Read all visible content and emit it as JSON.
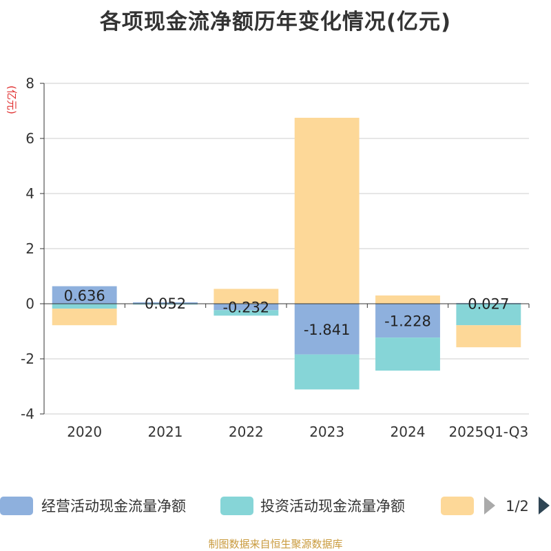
{
  "title": "各项现金流净额历年变化情况(亿元)",
  "source_note": "制图数据来自恒生聚源数据库",
  "legend": {
    "page_indicator": "1/2",
    "prev_icon": "triangle-left-icon",
    "next_icon": "triangle-right-icon"
  },
  "chart_data": {
    "type": "bar",
    "stacked": true,
    "title": "各项现金流净额历年变化情况(亿元)",
    "xlabel": "",
    "ylabel": "(亿元)",
    "ylim": [
      -4,
      8
    ],
    "yticks": [
      -4,
      -2,
      0,
      2,
      4,
      6,
      8
    ],
    "grid": true,
    "legend_position": "bottom",
    "categories": [
      "2020",
      "2021",
      "2022",
      "2023",
      "2024",
      "2025Q1-Q3"
    ],
    "series": [
      {
        "name": "经营活动现金流量净额",
        "color": "#8eb0dd",
        "values": [
          0.636,
          0.052,
          -0.232,
          -1.841,
          -1.228,
          0.027
        ],
        "labels": [
          "0.636",
          "0.052",
          "-0.232",
          "-1.841",
          "-1.228",
          "0.027"
        ]
      },
      {
        "name": "投资活动现金流量净额",
        "color": "#86d5d7",
        "values": [
          -0.18,
          -0.03,
          -0.2,
          -1.27,
          -1.2,
          -0.78
        ]
      },
      {
        "name": "",
        "color": "#fdd898",
        "values": [
          -0.6,
          0.0,
          0.54,
          6.75,
          0.3,
          -0.8
        ]
      }
    ]
  }
}
